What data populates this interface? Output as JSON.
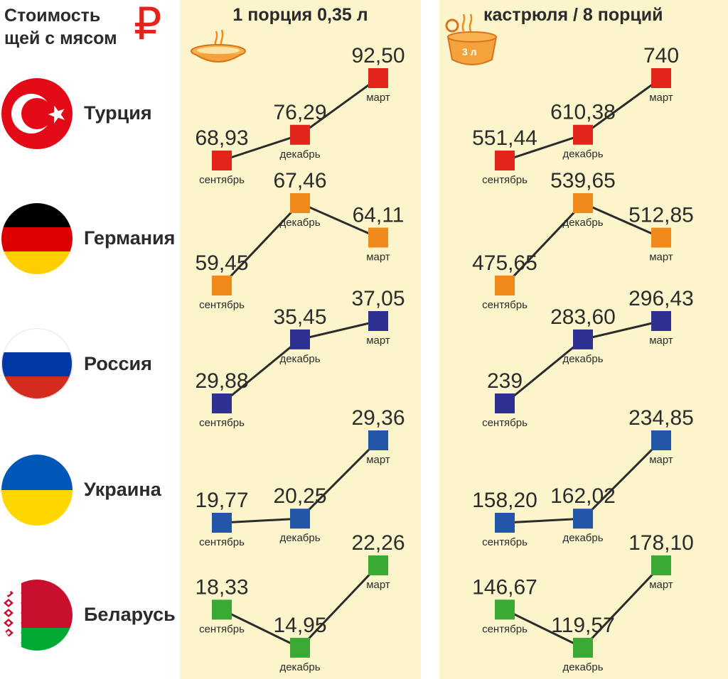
{
  "title": {
    "line1": "Стоимость",
    "line2": "щей с мясом"
  },
  "currency_icon": "ruble-sign",
  "panels": [
    {
      "label": "1 порция 0,35 л",
      "icon": "soup-bowl-icon"
    },
    {
      "label": "кастрюля / 8 порций",
      "icon": "pot-icon",
      "icon_label": "3 л"
    }
  ],
  "colors": {
    "Турция": "#e3241b",
    "Германия": "#f08a1d",
    "Россия": "#2e3192",
    "Украина": "#2356a8",
    "Беларусь": "#3aaa35",
    "panel_background": "#fcf5cc",
    "line": "#2b2b2b"
  },
  "chart_data": [
    {
      "type": "line",
      "title": "1 порция 0,35 л",
      "x": [
        "сентябрь",
        "декабрь",
        "март"
      ],
      "series": [
        {
          "name": "Турция",
          "values": [
            68.93,
            76.29,
            92.5
          ],
          "labels": [
            "68,93",
            "76,29",
            "92,50"
          ]
        },
        {
          "name": "Германия",
          "values": [
            59.45,
            67.46,
            64.11
          ],
          "labels": [
            "59,45",
            "67,46",
            "64,11"
          ]
        },
        {
          "name": "Россия",
          "values": [
            29.88,
            35.45,
            37.05
          ],
          "labels": [
            "29,88",
            "35,45",
            "37,05"
          ]
        },
        {
          "name": "Украина",
          "values": [
            19.77,
            20.25,
            29.36
          ],
          "labels": [
            "19,77",
            "20,25",
            "29,36"
          ]
        },
        {
          "name": "Беларусь",
          "values": [
            18.33,
            14.95,
            22.26
          ],
          "labels": [
            "18,33",
            "14,95",
            "22,26"
          ]
        }
      ]
    },
    {
      "type": "line",
      "title": "кастрюля / 8 порций",
      "x": [
        "сентябрь",
        "декабрь",
        "март"
      ],
      "series": [
        {
          "name": "Турция",
          "values": [
            551.44,
            610.38,
            740
          ],
          "labels": [
            "551,44",
            "610,38",
            "740"
          ]
        },
        {
          "name": "Германия",
          "values": [
            475.65,
            539.65,
            512.85
          ],
          "labels": [
            "475,65",
            "539,65",
            "512,85"
          ]
        },
        {
          "name": "Россия",
          "values": [
            239,
            283.6,
            296.43
          ],
          "labels": [
            "239",
            "283,60",
            "296,43"
          ]
        },
        {
          "name": "Украина",
          "values": [
            158.2,
            162.02,
            234.85
          ],
          "labels": [
            "158,20",
            "162,02",
            "234,85"
          ]
        },
        {
          "name": "Беларусь",
          "values": [
            146.67,
            119.57,
            178.1
          ],
          "labels": [
            "146,67",
            "119,57",
            "178,10"
          ]
        }
      ]
    }
  ]
}
